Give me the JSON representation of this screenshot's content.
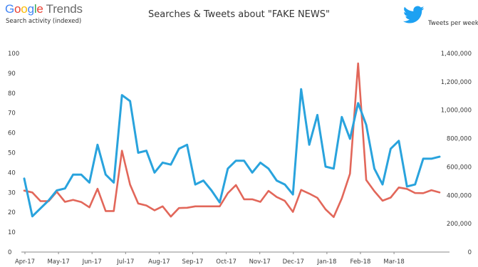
{
  "header": {
    "brand_google": "Google",
    "brand_trends": "Trends",
    "twitter_icon": "twitter-bird-icon"
  },
  "colors": {
    "search_line": "#29a3dd",
    "tweet_line": "#e2675a",
    "axis": "#8a8a8a"
  },
  "chart_data": {
    "type": "line",
    "title": "Searches & Tweets about \"FAKE NEWS\"",
    "ylabel_left": "Search activity (indexed)",
    "ylabel_right": "Tweets per week",
    "ylim_left": [
      0,
      100
    ],
    "ylim_right": [
      0,
      1400000
    ],
    "left_ticks": [
      "0",
      "10",
      "20",
      "30",
      "40",
      "50",
      "60",
      "70",
      "80",
      "90",
      "100"
    ],
    "right_ticks": [
      "0",
      "200,000",
      "400,000",
      "600,000",
      "800,000",
      "1,000,000",
      "1,200,000",
      "1,400,000"
    ],
    "x_ticks": [
      "Apr-17",
      "May-17",
      "Jun-17",
      "Jul-17",
      "Aug-17",
      "Sep-17",
      "Oct-17",
      "Nov-17",
      "Dec-17",
      "Jan-18",
      "Feb-18",
      "Mar-18"
    ],
    "legend": "none",
    "grid": false,
    "series": [
      {
        "name": "Search activity (indexed)",
        "axis": "left",
        "values": [
          37,
          18,
          22,
          26,
          31,
          32,
          39,
          39,
          35,
          54,
          39,
          35,
          79,
          76,
          50,
          51,
          40,
          45,
          44,
          52,
          54,
          34,
          36,
          31,
          25,
          42,
          46,
          46,
          40,
          45,
          42,
          36,
          34,
          29,
          82,
          54,
          69,
          43,
          42,
          68,
          57,
          75,
          64,
          42,
          34,
          52,
          56,
          33,
          34,
          47,
          47,
          48
        ]
      },
      {
        "name": "Tweets per week",
        "axis": "right",
        "values": [
          433000,
          420000,
          359000,
          359000,
          425000,
          354000,
          368000,
          353000,
          315000,
          446000,
          289000,
          289000,
          714000,
          475000,
          342000,
          328000,
          294000,
          322000,
          250000,
          310000,
          312000,
          322000,
          322000,
          322000,
          322000,
          415000,
          472000,
          372000,
          372000,
          354000,
          431000,
          388000,
          361000,
          283000,
          438000,
          412000,
          382000,
          301000,
          247000,
          378000,
          552000,
          1329000,
          508000,
          429000,
          362000,
          384000,
          455000,
          445000,
          416000,
          415000,
          436000,
          420000
        ]
      }
    ]
  }
}
